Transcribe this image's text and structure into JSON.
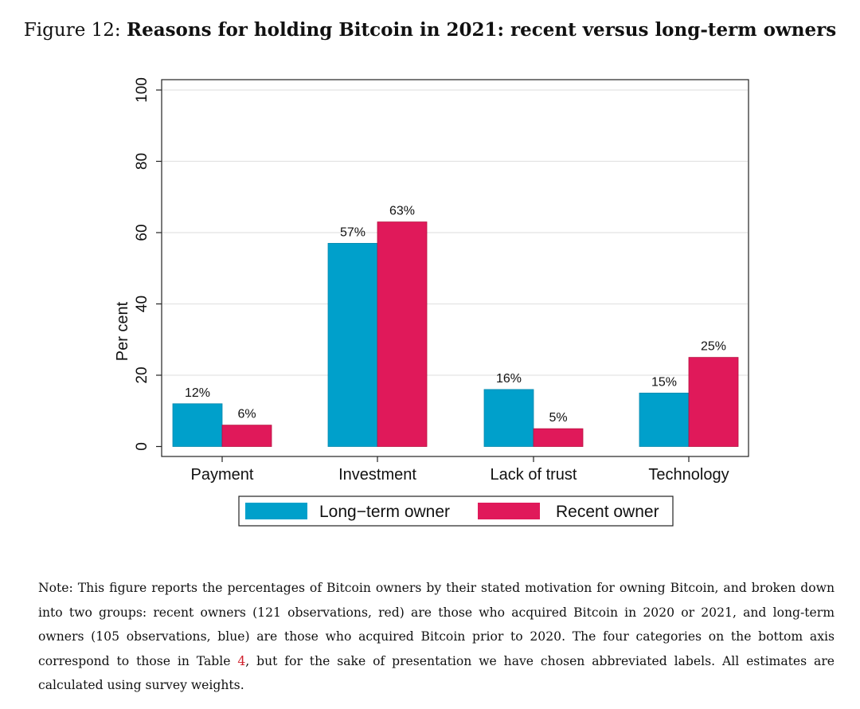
{
  "figure": {
    "label": "Figure 12:",
    "title": "Reasons for holding Bitcoin in 2021: recent versus long-term owners"
  },
  "colors": {
    "long_term": "#00a0cb",
    "recent": "#e0195a",
    "grid": "#e3e3e3",
    "axis": "#222222"
  },
  "chart_data": {
    "type": "bar",
    "categories": [
      "Payment",
      "Investment",
      "Lack of trust",
      "Technology"
    ],
    "series": [
      {
        "name": "Long−term owner",
        "values": [
          12,
          57,
          16,
          15
        ],
        "labels": [
          "12%",
          "57%",
          "16%",
          "15%"
        ],
        "color": "#00a0cb"
      },
      {
        "name": "Recent owner",
        "values": [
          6,
          63,
          5,
          25
        ],
        "labels": [
          "6%",
          "63%",
          "5%",
          "25%"
        ],
        "color": "#e0195a"
      }
    ],
    "ylabel": "Per cent",
    "ylim": [
      0,
      100
    ],
    "yticks": [
      "0",
      "20",
      "40",
      "60",
      "80",
      "100"
    ],
    "grid": true,
    "legend": "bottom"
  },
  "note": {
    "before_ref": "Note: This figure reports the percentages of Bitcoin owners by their stated motivation for owning Bitcoin, and broken down into two groups: recent owners (121 observations, red) are those who acquired Bitcoin in 2020 or 2021, and long-term owners (105 observations, blue) are those who acquired Bitcoin prior to 2020. The four categories on the bottom axis correspond to those in Table ",
    "ref": "4",
    "after_ref": ", but for the sake of presentation we have chosen abbreviated labels. All estimates are calculated using survey weights."
  }
}
